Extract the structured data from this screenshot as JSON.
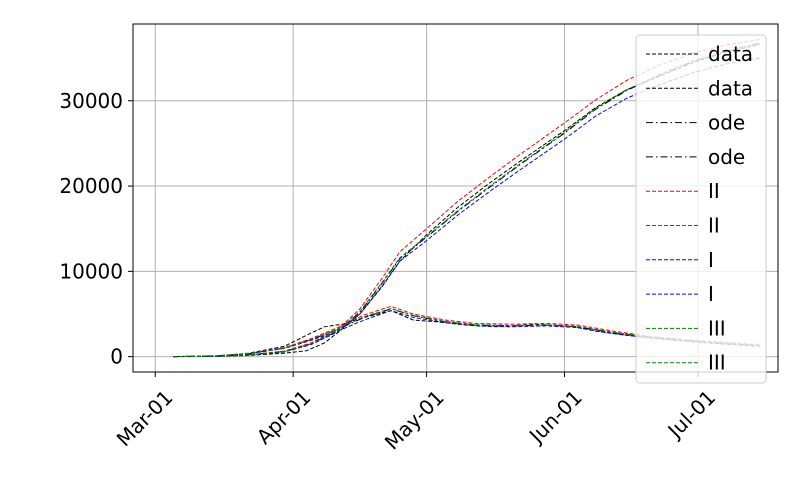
{
  "chart_data": {
    "type": "line",
    "title": "",
    "xlabel": "",
    "ylabel": "",
    "x_axis": "date",
    "xlim": [
      "2020-02-25",
      "2020-07-19"
    ],
    "ylim": [
      -1800,
      39000
    ],
    "xticks": [
      {
        "date": "2020-03-01",
        "label": "Mar-01"
      },
      {
        "date": "2020-04-01",
        "label": "Apr-01"
      },
      {
        "date": "2020-05-01",
        "label": "May-01"
      },
      {
        "date": "2020-06-01",
        "label": "Jun-01"
      },
      {
        "date": "2020-07-01",
        "label": "Jul-01"
      }
    ],
    "yticks": [
      {
        "value": 0,
        "label": "0"
      },
      {
        "value": 10000,
        "label": "10000"
      },
      {
        "value": 20000,
        "label": "20000"
      },
      {
        "value": 30000,
        "label": "30000"
      }
    ],
    "grid": true,
    "legend_position": "right",
    "series": [
      {
        "name": "data",
        "color": "#000000",
        "style": "dashed",
        "points": [
          [
            "2020-03-05",
            0
          ],
          [
            "2020-03-15",
            80
          ],
          [
            "2020-03-22",
            400
          ],
          [
            "2020-03-30",
            1200
          ],
          [
            "2020-04-04",
            2500
          ],
          [
            "2020-04-08",
            3500
          ],
          [
            "2020-04-12",
            3800
          ],
          [
            "2020-04-17",
            4600
          ],
          [
            "2020-04-23",
            5400
          ],
          [
            "2020-04-28",
            4300
          ],
          [
            "2020-05-03",
            4100
          ],
          [
            "2020-05-10",
            3700
          ],
          [
            "2020-05-17",
            3500
          ],
          [
            "2020-05-25",
            3800
          ],
          [
            "2020-06-02",
            3600
          ],
          [
            "2020-06-08",
            3000
          ],
          [
            "2020-06-15",
            2500
          ],
          [
            "2020-06-22",
            2100
          ],
          [
            "2020-06-30",
            1800
          ],
          [
            "2020-07-08",
            1500
          ],
          [
            "2020-07-15",
            1300
          ]
        ]
      },
      {
        "name": "data",
        "color": "#000000",
        "style": "dashed",
        "points": [
          [
            "2020-03-05",
            0
          ],
          [
            "2020-03-15",
            30
          ],
          [
            "2020-03-22",
            150
          ],
          [
            "2020-03-30",
            400
          ],
          [
            "2020-04-04",
            700
          ],
          [
            "2020-04-08",
            1600
          ],
          [
            "2020-04-11",
            2800
          ],
          [
            "2020-04-16",
            5000
          ],
          [
            "2020-04-21",
            8200
          ],
          [
            "2020-04-25",
            11200
          ],
          [
            "2020-05-01",
            14300
          ],
          [
            "2020-05-08",
            17500
          ],
          [
            "2020-05-15",
            20300
          ],
          [
            "2020-05-22",
            22900
          ],
          [
            "2020-06-01",
            26500
          ],
          [
            "2020-06-08",
            29200
          ],
          [
            "2020-06-15",
            31300
          ],
          [
            "2020-06-22",
            32800
          ],
          [
            "2020-06-30",
            34500
          ],
          [
            "2020-07-08",
            35800
          ],
          [
            "2020-07-15",
            36600
          ]
        ]
      },
      {
        "name": "ode",
        "color": "#000000",
        "style": "dashdot",
        "points": [
          [
            "2020-03-05",
            0
          ],
          [
            "2020-03-15",
            100
          ],
          [
            "2020-03-22",
            350
          ],
          [
            "2020-03-30",
            1000
          ],
          [
            "2020-04-05",
            2000
          ],
          [
            "2020-04-11",
            3200
          ],
          [
            "2020-04-17",
            4600
          ],
          [
            "2020-04-23",
            5600
          ],
          [
            "2020-04-28",
            4800
          ],
          [
            "2020-05-05",
            4100
          ],
          [
            "2020-05-12",
            3700
          ],
          [
            "2020-05-20",
            3600
          ],
          [
            "2020-05-28",
            3700
          ],
          [
            "2020-06-04",
            3500
          ],
          [
            "2020-06-12",
            2800
          ],
          [
            "2020-06-20",
            2300
          ],
          [
            "2020-06-28",
            1900
          ],
          [
            "2020-07-06",
            1600
          ],
          [
            "2020-07-15",
            1300
          ]
        ]
      },
      {
        "name": "ode",
        "color": "#000000",
        "style": "dashdot",
        "points": [
          [
            "2020-03-05",
            0
          ],
          [
            "2020-03-15",
            50
          ],
          [
            "2020-03-22",
            200
          ],
          [
            "2020-03-30",
            600
          ],
          [
            "2020-04-05",
            1500
          ],
          [
            "2020-04-11",
            3000
          ],
          [
            "2020-04-16",
            5200
          ],
          [
            "2020-04-21",
            8600
          ],
          [
            "2020-04-25",
            11500
          ],
          [
            "2020-05-01",
            14000
          ],
          [
            "2020-05-08",
            17000
          ],
          [
            "2020-05-15",
            19800
          ],
          [
            "2020-05-22",
            22500
          ],
          [
            "2020-06-01",
            26200
          ],
          [
            "2020-06-08",
            29000
          ],
          [
            "2020-06-15",
            31200
          ],
          [
            "2020-06-22",
            32900
          ],
          [
            "2020-06-30",
            34600
          ],
          [
            "2020-07-08",
            35900
          ],
          [
            "2020-07-15",
            36800
          ]
        ]
      },
      {
        "name": "II",
        "color": "#ff0000",
        "style": "dashed",
        "points": [
          [
            "2020-03-05",
            0
          ],
          [
            "2020-03-15",
            110
          ],
          [
            "2020-03-22",
            380
          ],
          [
            "2020-03-30",
            1050
          ],
          [
            "2020-04-05",
            2100
          ],
          [
            "2020-04-11",
            3400
          ],
          [
            "2020-04-17",
            4900
          ],
          [
            "2020-04-23",
            5900
          ],
          [
            "2020-04-28",
            5000
          ],
          [
            "2020-05-05",
            4300
          ],
          [
            "2020-05-12",
            3900
          ],
          [
            "2020-05-20",
            3800
          ],
          [
            "2020-05-28",
            3900
          ],
          [
            "2020-06-04",
            3700
          ],
          [
            "2020-06-12",
            3000
          ],
          [
            "2020-06-20",
            2400
          ],
          [
            "2020-06-28",
            2000
          ],
          [
            "2020-07-06",
            1700
          ],
          [
            "2020-07-15",
            1400
          ]
        ]
      },
      {
        "name": "II",
        "color": "#ff0000",
        "style": "dashed",
        "points": [
          [
            "2020-03-05",
            0
          ],
          [
            "2020-03-15",
            60
          ],
          [
            "2020-03-22",
            220
          ],
          [
            "2020-03-30",
            650
          ],
          [
            "2020-04-05",
            1600
          ],
          [
            "2020-04-11",
            3200
          ],
          [
            "2020-04-16",
            5600
          ],
          [
            "2020-04-21",
            9200
          ],
          [
            "2020-04-25",
            12300
          ],
          [
            "2020-05-01",
            15000
          ],
          [
            "2020-05-08",
            18200
          ],
          [
            "2020-05-15",
            21000
          ],
          [
            "2020-05-22",
            23700
          ],
          [
            "2020-06-01",
            27400
          ],
          [
            "2020-06-08",
            30100
          ],
          [
            "2020-06-15",
            32400
          ],
          [
            "2020-06-22",
            34100
          ],
          [
            "2020-06-30",
            35600
          ],
          [
            "2020-07-08",
            36600
          ],
          [
            "2020-07-15",
            37200
          ]
        ]
      },
      {
        "name": "I",
        "color": "#0000ff",
        "style": "dashed",
        "points": [
          [
            "2020-03-05",
            0
          ],
          [
            "2020-03-15",
            90
          ],
          [
            "2020-03-22",
            330
          ],
          [
            "2020-03-30",
            950
          ],
          [
            "2020-04-05",
            1900
          ],
          [
            "2020-04-11",
            3000
          ],
          [
            "2020-04-17",
            4300
          ],
          [
            "2020-04-23",
            5400
          ],
          [
            "2020-04-28",
            4600
          ],
          [
            "2020-05-05",
            4000
          ],
          [
            "2020-05-12",
            3600
          ],
          [
            "2020-05-20",
            3500
          ],
          [
            "2020-05-28",
            3600
          ],
          [
            "2020-06-04",
            3400
          ],
          [
            "2020-06-12",
            2700
          ],
          [
            "2020-06-20",
            2200
          ],
          [
            "2020-06-28",
            1800
          ],
          [
            "2020-07-06",
            1500
          ],
          [
            "2020-07-15",
            1200
          ]
        ]
      },
      {
        "name": "I",
        "color": "#0000ff",
        "style": "dashed",
        "points": [
          [
            "2020-03-05",
            0
          ],
          [
            "2020-03-15",
            40
          ],
          [
            "2020-03-22",
            180
          ],
          [
            "2020-03-30",
            550
          ],
          [
            "2020-04-05",
            1400
          ],
          [
            "2020-04-11",
            2900
          ],
          [
            "2020-04-16",
            5000
          ],
          [
            "2020-04-21",
            8300
          ],
          [
            "2020-04-25",
            11200
          ],
          [
            "2020-05-01",
            13600
          ],
          [
            "2020-05-08",
            16600
          ],
          [
            "2020-05-15",
            19300
          ],
          [
            "2020-05-22",
            21900
          ],
          [
            "2020-06-01",
            25500
          ],
          [
            "2020-06-08",
            28200
          ],
          [
            "2020-06-15",
            30300
          ],
          [
            "2020-06-22",
            31800
          ],
          [
            "2020-06-30",
            33300
          ],
          [
            "2020-07-08",
            34400
          ],
          [
            "2020-07-15",
            35000
          ]
        ]
      },
      {
        "name": "III",
        "color": "#008000",
        "style": "dashed",
        "points": [
          [
            "2020-03-05",
            0
          ],
          [
            "2020-03-15",
            100
          ],
          [
            "2020-03-22",
            360
          ],
          [
            "2020-03-30",
            1000
          ],
          [
            "2020-04-05",
            2000
          ],
          [
            "2020-04-11",
            3250
          ],
          [
            "2020-04-17",
            4700
          ],
          [
            "2020-04-23",
            5650
          ],
          [
            "2020-04-28",
            4850
          ],
          [
            "2020-05-05",
            4150
          ],
          [
            "2020-05-12",
            3750
          ],
          [
            "2020-05-20",
            3650
          ],
          [
            "2020-05-28",
            3750
          ],
          [
            "2020-06-04",
            3550
          ],
          [
            "2020-06-12",
            2850
          ],
          [
            "2020-06-20",
            2300
          ],
          [
            "2020-06-28",
            1900
          ],
          [
            "2020-07-06",
            1600
          ],
          [
            "2020-07-15",
            1300
          ]
        ]
      },
      {
        "name": "III",
        "color": "#008000",
        "style": "dashed",
        "points": [
          [
            "2020-03-05",
            0
          ],
          [
            "2020-03-15",
            50
          ],
          [
            "2020-03-22",
            200
          ],
          [
            "2020-03-30",
            600
          ],
          [
            "2020-04-05",
            1500
          ],
          [
            "2020-04-11",
            3050
          ],
          [
            "2020-04-16",
            5300
          ],
          [
            "2020-04-21",
            8700
          ],
          [
            "2020-04-25",
            11600
          ],
          [
            "2020-05-01",
            14100
          ],
          [
            "2020-05-08",
            17100
          ],
          [
            "2020-05-15",
            19900
          ],
          [
            "2020-05-22",
            22600
          ],
          [
            "2020-06-01",
            26300
          ],
          [
            "2020-06-08",
            29100
          ],
          [
            "2020-06-15",
            31300
          ],
          [
            "2020-06-22",
            33000
          ],
          [
            "2020-06-30",
            34700
          ],
          [
            "2020-07-08",
            35900
          ],
          [
            "2020-07-15",
            36700
          ]
        ]
      }
    ]
  }
}
